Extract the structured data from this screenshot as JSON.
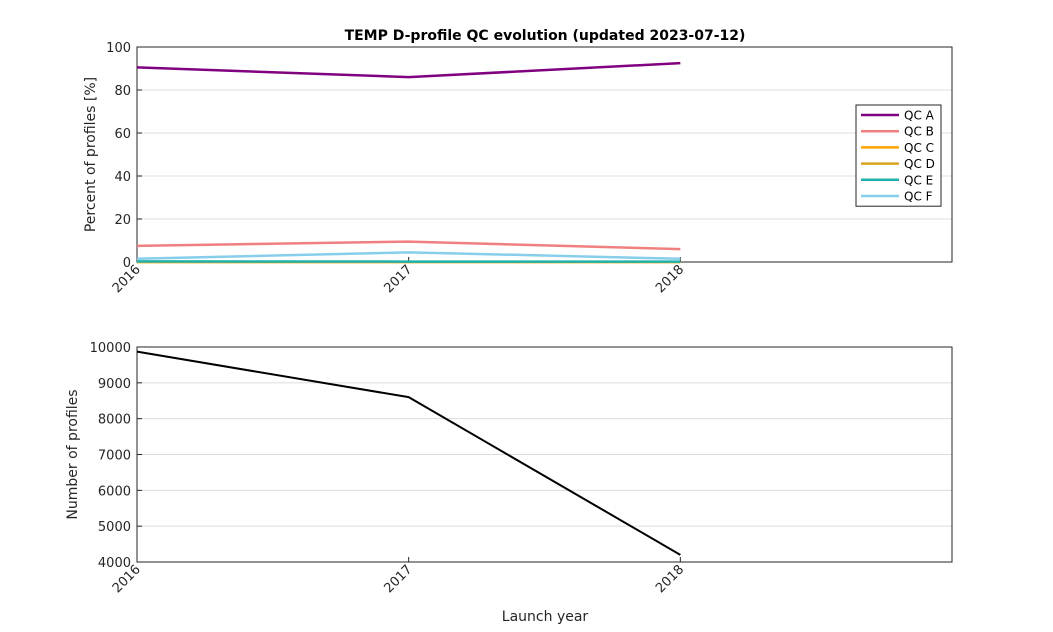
{
  "charts": {
    "title": "TEMP D-profile QC evolution (updated 2023-07-12)"
  },
  "chart_data": [
    {
      "type": "line",
      "title": "TEMP D-profile QC evolution (updated 2023-07-12)",
      "xlabel": "",
      "ylabel": "Percent of profiles [%]",
      "x": [
        2016,
        2017,
        2018
      ],
      "x_ticks": [
        "2016",
        "2017",
        "2018"
      ],
      "xlim": [
        2016,
        2019
      ],
      "ylim": [
        0,
        100
      ],
      "y_ticks": [
        "0",
        "20",
        "40",
        "60",
        "80",
        "100"
      ],
      "grid": true,
      "legend_position": "right",
      "series": [
        {
          "name": "QC A",
          "color": "#800080",
          "values": [
            90.5,
            86.0,
            92.5
          ]
        },
        {
          "name": "QC B",
          "color": "#f08080",
          "values": [
            7.5,
            9.5,
            6.0
          ]
        },
        {
          "name": "QC C",
          "color": "#ffa500",
          "values": [
            0.0,
            0.0,
            0.0
          ]
        },
        {
          "name": "QC D",
          "color": "#daa520",
          "values": [
            0.0,
            0.0,
            0.0
          ]
        },
        {
          "name": "QC E",
          "color": "#20b2aa",
          "values": [
            0.3,
            0.2,
            0.2
          ]
        },
        {
          "name": "QC F",
          "color": "#87ceeb",
          "values": [
            1.5,
            4.5,
            1.5
          ]
        }
      ]
    },
    {
      "type": "line",
      "title": "",
      "xlabel": "Launch year",
      "ylabel": "Number of profiles",
      "x": [
        2016,
        2017,
        2018
      ],
      "x_ticks": [
        "2016",
        "2017",
        "2018"
      ],
      "xlim": [
        2016,
        2019
      ],
      "ylim": [
        4000,
        10000
      ],
      "y_ticks": [
        "4000",
        "5000",
        "6000",
        "7000",
        "8000",
        "9000",
        "10000"
      ],
      "grid": true,
      "series": [
        {
          "color": "#000000",
          "values": [
            9870,
            8600,
            4200
          ]
        }
      ]
    }
  ]
}
